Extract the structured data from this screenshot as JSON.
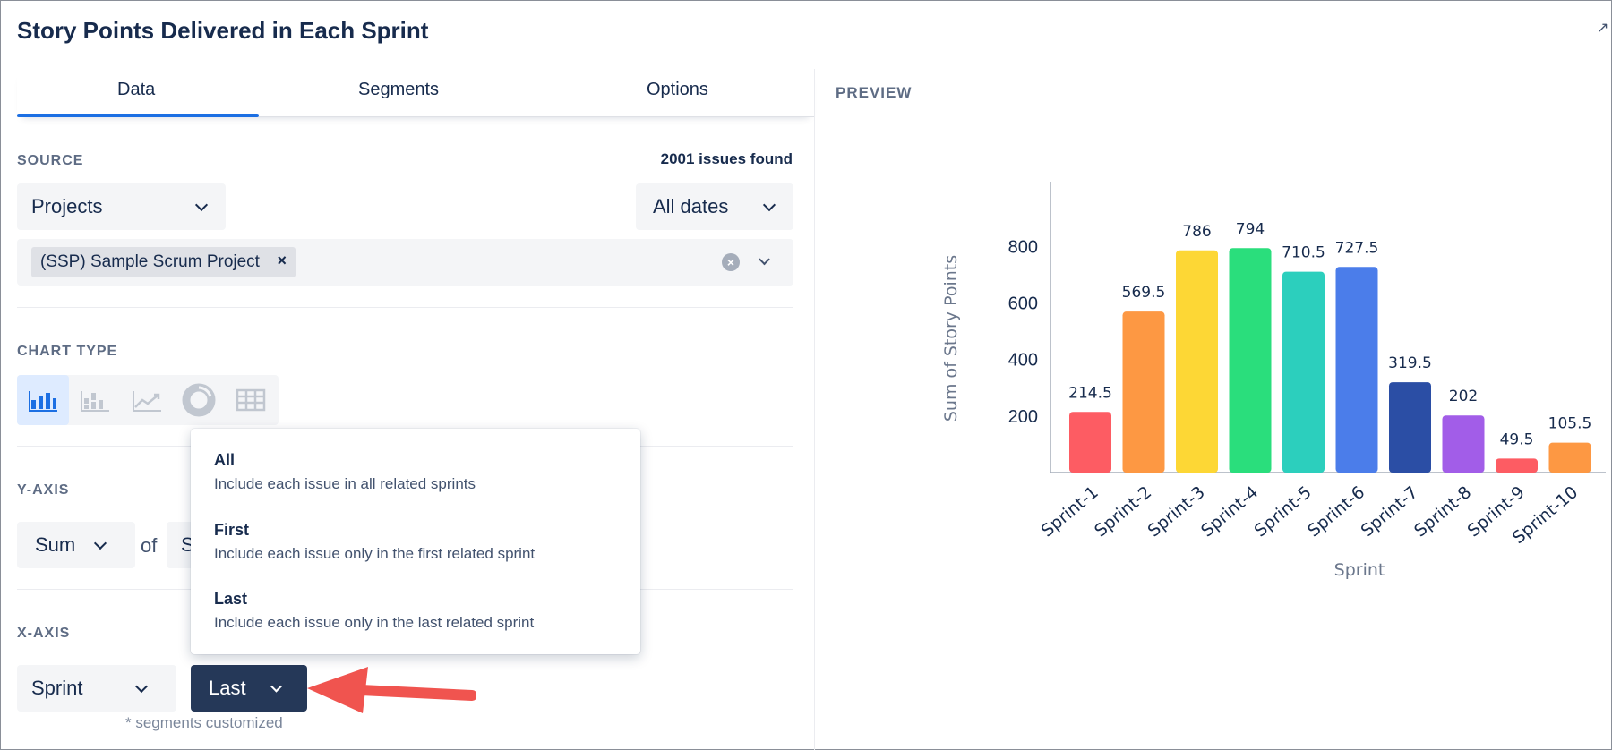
{
  "title": "Story Points Delivered in Each Sprint",
  "tabs": [
    {
      "label": "Data",
      "active": true
    },
    {
      "label": "Segments",
      "active": false
    },
    {
      "label": "Options",
      "active": false
    }
  ],
  "source": {
    "label": "SOURCE",
    "issues_found": "2001 issues found",
    "type_select": "Projects",
    "date_select": "All dates",
    "selected_project": "(SSP) Sample Scrum Project",
    "remove_icon": "×"
  },
  "chart_type": {
    "label": "CHART TYPE",
    "options": [
      "bar-chart-icon",
      "stacked-bar-icon",
      "line-chart-icon",
      "donut-chart-icon",
      "table-icon"
    ],
    "active": "bar-chart-icon"
  },
  "y_axis": {
    "label": "Y-AXIS",
    "aggregate": "Sum",
    "of_text": "of",
    "field_partial": "S"
  },
  "x_axis": {
    "label": "X-AXIS",
    "field": "Sprint",
    "sprint_mode": "Last",
    "note": "* segments customized"
  },
  "sprint_menu": {
    "options": [
      {
        "title": "All",
        "desc": "Include each issue in all related sprints"
      },
      {
        "title": "First",
        "desc": "Include each issue only in the first related sprint"
      },
      {
        "title": "Last",
        "desc": "Include each issue only in the last related sprint"
      }
    ]
  },
  "preview_label": "PREVIEW",
  "colors": {
    "accent": "#1c6fe3",
    "dark_button": "#253858",
    "arrow": "#f0544f"
  },
  "chart_data": {
    "type": "bar",
    "categories": [
      "Sprint-1",
      "Sprint-2",
      "Sprint-3",
      "Sprint-4",
      "Sprint-5",
      "Sprint-6",
      "Sprint-7",
      "Sprint-8",
      "Sprint-9",
      "Sprint-10"
    ],
    "values": [
      214.5,
      569.5,
      786,
      794,
      710.5,
      727.5,
      319.5,
      202,
      49.5,
      105.5
    ],
    "data_labels": [
      "214.5",
      "569.5",
      "786",
      "794",
      "710.5",
      "727.5",
      "319.5",
      "202",
      "49.5",
      "105.5"
    ],
    "colors": [
      "#fd5c63",
      "#fd9843",
      "#fdd735",
      "#2ade7c",
      "#2ccfbd",
      "#4b7dea",
      "#2b4ea5",
      "#a25de8",
      "#fd5c63",
      "#fd9843"
    ],
    "yticks": [
      200,
      400,
      600,
      800
    ],
    "ylim": [
      0,
      950
    ],
    "xlabel": "Sprint",
    "ylabel": "Sum of Story Points",
    "grid": false
  }
}
